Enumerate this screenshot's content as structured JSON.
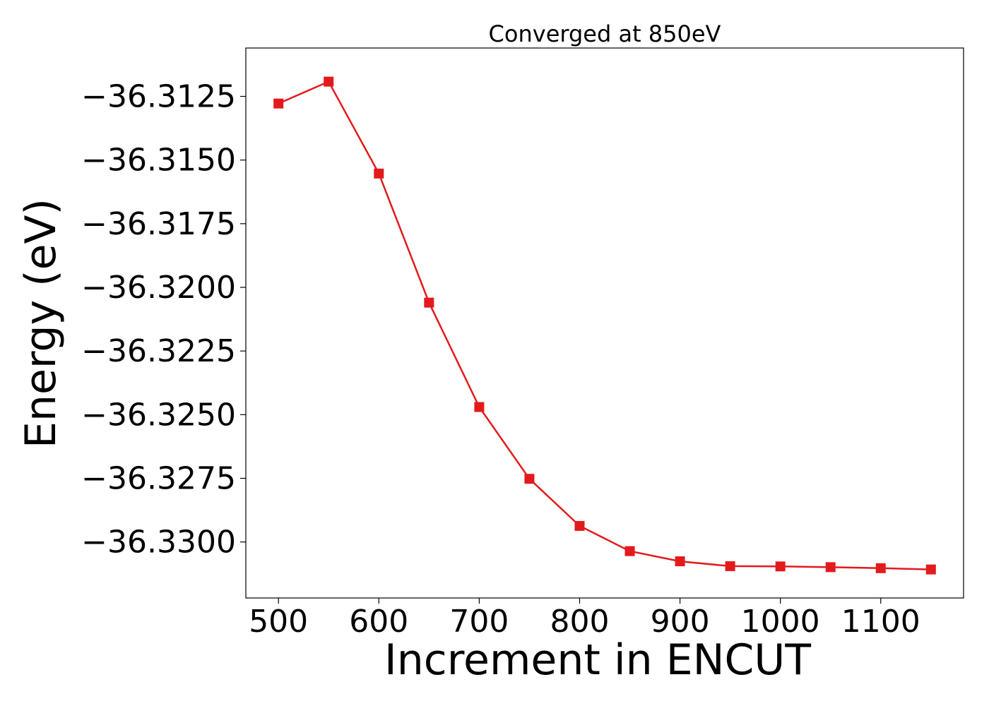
{
  "chart_data": {
    "type": "line",
    "title": "Converged at 850eV",
    "xlabel": "Increment in ENCUT",
    "ylabel": "Energy (eV)",
    "xlim": [
      467.5,
      1182.5
    ],
    "ylim": [
      -36.3322,
      -36.3106
    ],
    "xticks": [
      500,
      600,
      700,
      800,
      900,
      1000,
      1100
    ],
    "xtick_labels": [
      "500",
      "600",
      "700",
      "800",
      "900",
      "1000",
      "1100"
    ],
    "yticks": [
      -36.3125,
      -36.315,
      -36.3175,
      -36.32,
      -36.3225,
      -36.325,
      -36.3275,
      -36.33
    ],
    "ytick_labels": [
      "−36.3125",
      "−36.3150",
      "−36.3175",
      "−36.3200",
      "−36.3225",
      "−36.3250",
      "−36.3275",
      "−36.3300"
    ],
    "grid": false,
    "series": [
      {
        "color": "#e31a1c",
        "marker": "square",
        "x": [
          500,
          550,
          600,
          650,
          700,
          750,
          800,
          850,
          900,
          950,
          1000,
          1050,
          1100,
          1150
        ],
        "y": [
          -36.31278,
          -36.31192,
          -36.31553,
          -36.3206,
          -36.3247,
          -36.32752,
          -36.32937,
          -36.33036,
          -36.33076,
          -36.33095,
          -36.33096,
          -36.33099,
          -36.33103,
          -36.33108
        ]
      }
    ]
  }
}
